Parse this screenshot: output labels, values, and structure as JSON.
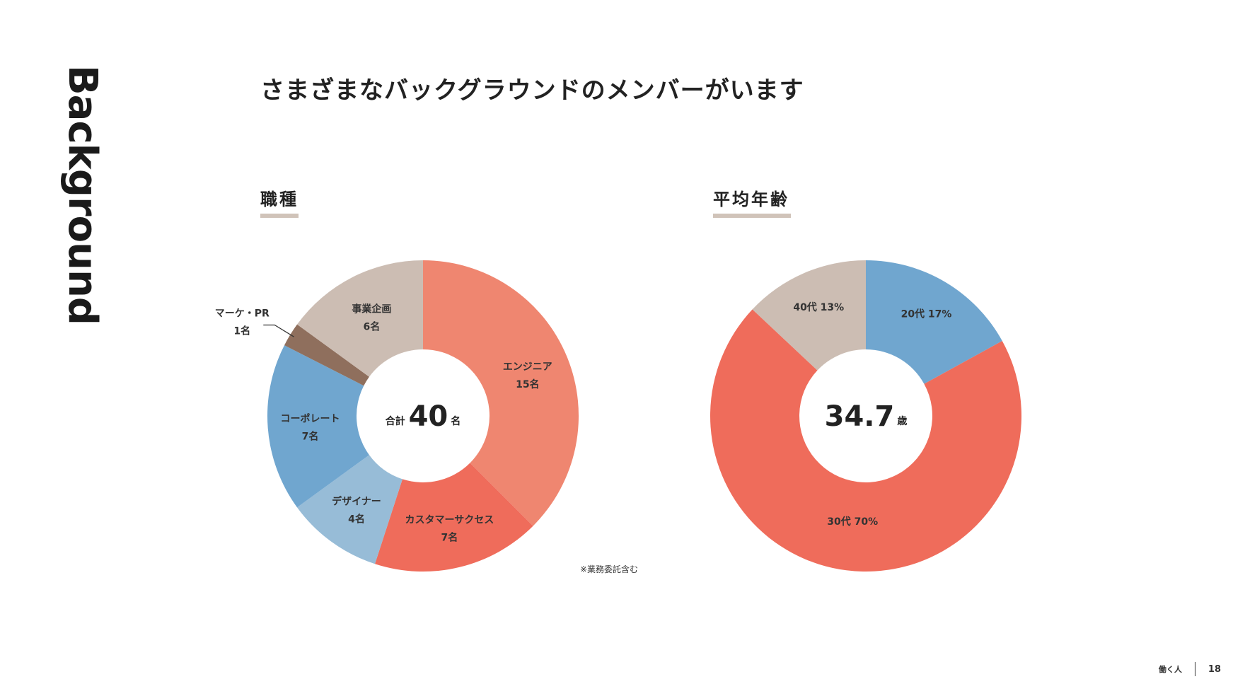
{
  "side_title": "Background",
  "headline": "さまざまなバックグラウンドのメンバーがいます",
  "sections": {
    "job": {
      "label": "職種"
    },
    "age": {
      "label": "平均年齢"
    }
  },
  "colors": {
    "underline": "#d0c3b9",
    "engineer": "#ef8670",
    "customer_success": "#ef6c5b",
    "designer": "#97bcd7",
    "corporate": "#70a6cf",
    "marketing": "#8f6f5d",
    "business": "#ccbdb3",
    "age_20s": "#70a6cf",
    "age_30s": "#ef6c5b",
    "age_40s": "#ccbdb3"
  },
  "chart_data": [
    {
      "type": "pie",
      "title": "職種",
      "center_prefix": "合計",
      "center_value": "40",
      "center_suffix": "名",
      "total": 40,
      "unit": "名",
      "slices": [
        {
          "name": "エンジニア",
          "value": 15,
          "value_label": "15名",
          "color_key": "engineer"
        },
        {
          "name": "カスタマーサクセス",
          "value": 7,
          "value_label": "7名",
          "color_key": "customer_success"
        },
        {
          "name": "デザイナー",
          "value": 4,
          "value_label": "4名",
          "color_key": "designer"
        },
        {
          "name": "コーポレート",
          "value": 7,
          "value_label": "7名",
          "color_key": "corporate"
        },
        {
          "name": "マーケ・PR",
          "value": 1,
          "value_label": "1名",
          "color_key": "marketing"
        },
        {
          "name": "事業企画",
          "value": 6,
          "value_label": "6名",
          "color_key": "business"
        }
      ],
      "footnote": "※業務委託含む"
    },
    {
      "type": "pie",
      "title": "平均年齢",
      "center_value": "34.7",
      "center_suffix": "歳",
      "slices": [
        {
          "name": "20代",
          "value": 17,
          "value_label": "17%",
          "color_key": "age_20s"
        },
        {
          "name": "30代",
          "value": 70,
          "value_label": "70%",
          "color_key": "age_30s"
        },
        {
          "name": "40代",
          "value": 13,
          "value_label": "13%",
          "color_key": "age_40s"
        }
      ]
    }
  ],
  "footer": {
    "brand": "働く人",
    "page_number": "18"
  }
}
